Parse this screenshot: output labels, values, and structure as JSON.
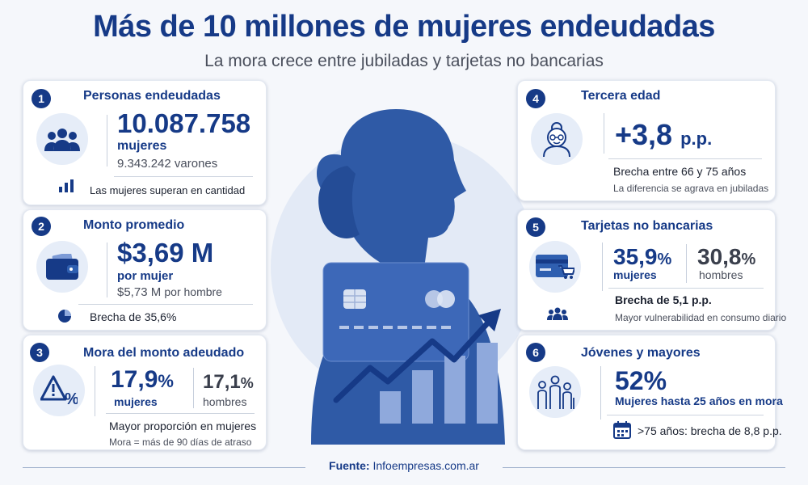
{
  "header": {
    "title": "Más de 10 millones de mujeres endeudadas",
    "subtitle": "La mora crece entre jubiladas y tarjetas no bancarias"
  },
  "cards": {
    "c1": {
      "num": "1",
      "title": "Personas endeudadas",
      "value": "10.087.758",
      "value_label": "mujeres",
      "secondary": "9.343.242 varones",
      "note": "Las mujeres superan en cantidad"
    },
    "c2": {
      "num": "2",
      "title": "Monto promedio",
      "value": "$3,69 M",
      "value_label": "por mujer",
      "secondary_value": "$5,73 M",
      "secondary_label": "por hombre",
      "note": "Brecha de 35,6%"
    },
    "c3": {
      "num": "3",
      "title": "Mora del monto adeudado",
      "women_value": "17,9",
      "women_unit": "%",
      "women_label": "mujeres",
      "men_value": "17,1",
      "men_unit": "%",
      "men_label": "hombres",
      "note": "Mayor proporción en mujeres",
      "footnote": "Mora = más de 90 días de atraso"
    },
    "c4": {
      "num": "4",
      "title": "Tercera edad",
      "value": "+3,8",
      "unit": "p.p.",
      "note": "Brecha entre 66 y 75 años",
      "footnote": "La diferencia se agrava en jubiladas"
    },
    "c5": {
      "num": "5",
      "title": "Tarjetas no bancarias",
      "women_value": "35,9",
      "women_unit": "%",
      "women_label": "mujeres",
      "men_value": "30,8",
      "men_unit": "%",
      "men_label": "hombres",
      "note": "Brecha de 5,1 p.p.",
      "footnote": "Mayor vulnerabilidad en consumo diario"
    },
    "c6": {
      "num": "6",
      "title": "Jóvenes y mayores",
      "value": "52%",
      "value_label": "Mujeres hasta 25 años en mora",
      "note": ">75 años: brecha de 8,8 p.p."
    }
  },
  "footer": {
    "label": "Fuente:",
    "source": "Infoempresas.com.ar"
  },
  "colors": {
    "primary": "#163a87",
    "accent": "#2f5fb0",
    "light": "#e6edf8",
    "gray_text": "#4a4f5c"
  }
}
